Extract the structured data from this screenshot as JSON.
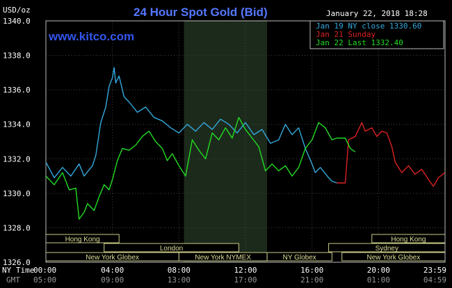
{
  "chart_data": {
    "type": "line",
    "title": "24 Hour Spot Gold (Bid)",
    "watermark": "www.kitco.com",
    "timestamp": "January 22, 2018 18:28",
    "ylabel": "USD/oz",
    "ylim": [
      1326.0,
      1340.0
    ],
    "yticks": [
      "1340.0",
      "1338.0",
      "1336.0",
      "1334.0",
      "1332.0",
      "1330.0",
      "1328.0",
      "1326.0"
    ],
    "ny_time_label": "NY Time",
    "gmt_label": "GMT",
    "xticks_ny": [
      "00:00",
      "04:00",
      "08:00",
      "12:00",
      "16:00",
      "20:00",
      "23:59"
    ],
    "xticks_gmt": [
      "05:00",
      "09:00",
      "13:00",
      "17:00",
      "21:00",
      "01:00",
      "04:59"
    ],
    "legend": [
      {
        "label": "Jan 19 NY close 1330.60",
        "color": "#33aadd"
      },
      {
        "label": "Jan 21 Sunday",
        "color": "#dd2222"
      },
      {
        "label": "Jan 22 Last 1332.40",
        "color": "#22dd22"
      }
    ],
    "markets": [
      {
        "name": "Hong Kong",
        "start": 0,
        "end": 4.4
      },
      {
        "name": "Hong Kong",
        "start": 19.6,
        "end": 24
      },
      {
        "name": "London",
        "start": 3.5,
        "end": 11.6
      },
      {
        "name": "Sydney",
        "start": 17.0,
        "end": 24
      },
      {
        "name": "New York Globex",
        "start": 0,
        "end": 8.0
      },
      {
        "name": "New York NYMEX",
        "start": 8.0,
        "end": 13.3
      },
      {
        "name": "NY Globex",
        "start": 13.3,
        "end": 17.2
      },
      {
        "name": "New York Globex",
        "start": 17.8,
        "end": 24
      }
    ],
    "shaded_hours": [
      8.3,
      13.3
    ],
    "series": [
      {
        "name": "Jan 19 NY close 1330.60",
        "color": "#33aadd",
        "x": [
          0,
          0.5,
          1.0,
          1.5,
          2.0,
          2.3,
          2.8,
          3.0,
          3.3,
          3.6,
          3.8,
          4.0,
          4.1,
          4.2,
          4.4,
          4.7,
          5.0,
          5.5,
          6.0,
          6.5,
          7.0,
          7.5,
          8.0,
          8.5,
          9.0,
          9.5,
          10.0,
          10.5,
          11.0,
          11.5,
          12.0,
          12.5,
          13.0,
          13.5,
          14.0,
          14.4,
          14.8,
          15.2,
          15.6,
          16.0,
          16.2,
          16.5,
          17.0,
          17.2,
          17.5
        ],
        "y": [
          1331.8,
          1330.9,
          1331.5,
          1331.0,
          1331.7,
          1331.0,
          1331.6,
          1332.2,
          1334.1,
          1335.0,
          1336.2,
          1336.7,
          1337.3,
          1336.4,
          1336.8,
          1335.6,
          1335.3,
          1334.7,
          1335.0,
          1334.4,
          1334.2,
          1333.8,
          1333.5,
          1334.0,
          1333.6,
          1334.1,
          1333.7,
          1334.3,
          1334.0,
          1333.5,
          1334.1,
          1333.4,
          1333.7,
          1332.9,
          1333.1,
          1334.0,
          1333.4,
          1333.8,
          1332.6,
          1331.7,
          1331.2,
          1331.5,
          1330.9,
          1330.7,
          1330.6
        ]
      },
      {
        "name": "Jan 21 Sunday",
        "color": "#dd2222",
        "x": [
          17.5,
          18.0,
          18.2,
          18.6,
          19.0,
          19.2,
          19.6,
          19.9,
          20.2,
          20.5,
          20.8,
          21.0,
          21.4,
          21.8,
          22.2,
          22.6,
          23.0,
          23.3,
          23.6,
          23.99
        ],
        "y": [
          1330.6,
          1330.6,
          1333.1,
          1333.3,
          1334.1,
          1333.6,
          1333.8,
          1333.3,
          1333.6,
          1333.5,
          1332.7,
          1331.8,
          1331.2,
          1331.6,
          1331.1,
          1331.4,
          1330.8,
          1330.4,
          1330.9,
          1331.2
        ]
      },
      {
        "name": "Jan 22 Last 1332.40",
        "color": "#22dd22",
        "x": [
          0,
          0.5,
          1.0,
          1.4,
          1.8,
          2.0,
          2.3,
          2.5,
          2.9,
          3.2,
          3.5,
          3.8,
          4.0,
          4.3,
          4.6,
          5.0,
          5.4,
          5.8,
          6.2,
          6.6,
          7.0,
          7.3,
          7.6,
          8.0,
          8.4,
          8.8,
          9.2,
          9.6,
          10.0,
          10.4,
          10.8,
          11.2,
          11.6,
          12.0,
          12.4,
          12.8,
          13.2,
          13.6,
          14.0,
          14.4,
          14.8,
          15.2,
          15.6,
          16.0,
          16.4,
          16.8,
          17.2,
          17.5,
          18.0,
          18.3,
          18.6
        ],
        "y": [
          1331.0,
          1330.5,
          1331.2,
          1330.2,
          1330.3,
          1328.5,
          1328.9,
          1329.4,
          1329.0,
          1329.8,
          1330.5,
          1330.2,
          1330.8,
          1331.9,
          1332.6,
          1332.5,
          1332.8,
          1333.3,
          1333.6,
          1333.0,
          1332.6,
          1331.9,
          1332.3,
          1331.6,
          1331.0,
          1333.1,
          1332.5,
          1332.0,
          1333.5,
          1333.1,
          1333.8,
          1333.2,
          1334.4,
          1333.7,
          1333.2,
          1332.7,
          1331.3,
          1331.7,
          1331.3,
          1331.6,
          1331.0,
          1331.5,
          1332.6,
          1333.1,
          1334.1,
          1333.8,
          1333.1,
          1333.2,
          1333.2,
          1332.6,
          1332.4
        ]
      }
    ]
  }
}
